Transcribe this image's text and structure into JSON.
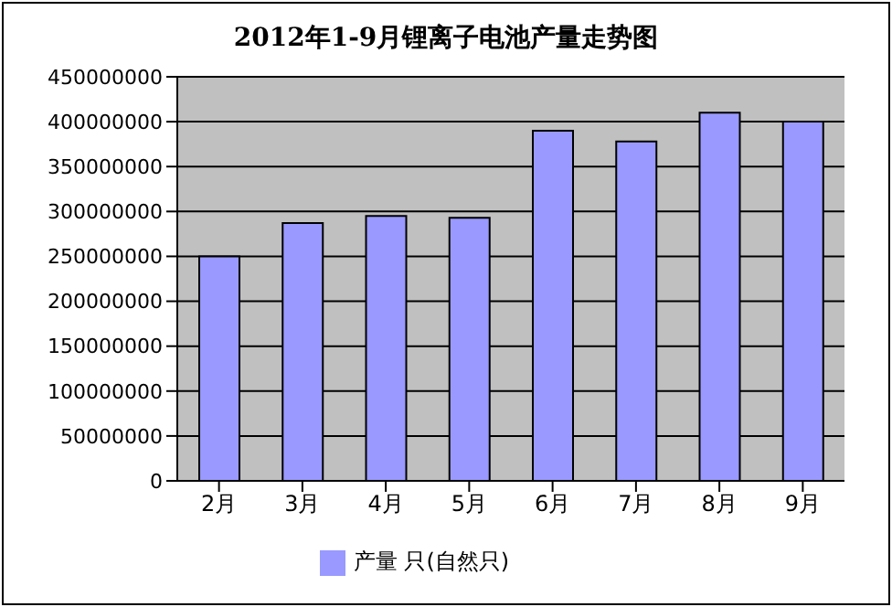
{
  "chart_data": {
    "type": "bar",
    "title": "2012年1-9月锂离子电池产量走势图",
    "categories": [
      "2月",
      "3月",
      "4月",
      "5月",
      "6月",
      "7月",
      "8月",
      "9月"
    ],
    "series": [
      {
        "name": "产量 只(自然只)",
        "color": "#9999ff",
        "values": [
          250000000,
          287000000,
          295000000,
          293000000,
          390000000,
          378000000,
          410000000,
          400000000
        ]
      }
    ],
    "ylim": [
      0,
      450000000
    ],
    "yticks": [
      0,
      50000000,
      100000000,
      150000000,
      200000000,
      250000000,
      300000000,
      350000000,
      400000000,
      450000000
    ],
    "grid": "y",
    "legend": "bottom"
  }
}
